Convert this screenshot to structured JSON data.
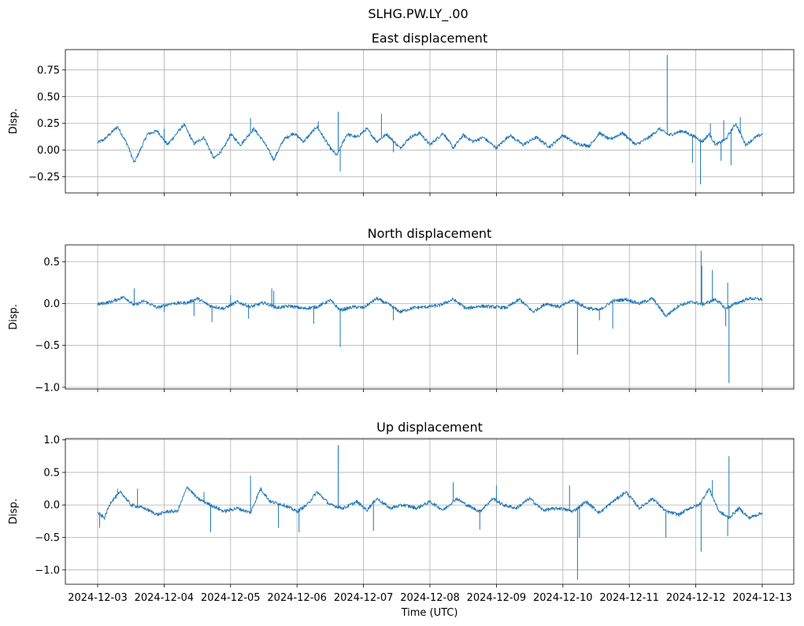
{
  "figure_title": "SLHG.PW.LY_.00",
  "colors": {
    "series": "#1f77b4"
  },
  "chart_data": [
    {
      "type": "line",
      "title": "East displacement",
      "xlabel": "",
      "ylabel": "Disp.",
      "x_tick_labels": [
        "2024-12-03",
        "2024-12-04",
        "2024-12-05",
        "2024-12-06",
        "2024-12-07",
        "2024-12-08",
        "2024-12-09",
        "2024-12-10",
        "2024-12-11",
        "2024-12-12",
        "2024-12-13"
      ],
      "x_range_days": [
        0,
        10
      ],
      "ylim": [
        -0.4,
        0.94
      ],
      "y_ticks": [
        -0.25,
        0.0,
        0.25,
        0.5,
        0.75
      ],
      "y_tick_labels": [
        "−0.25",
        "0.00",
        "0.25",
        "0.50",
        "0.75"
      ],
      "grid": true,
      "series": [
        {
          "name": "East",
          "x": [
            0,
            0.1,
            0.3,
            0.45,
            0.55,
            0.75,
            0.9,
            1.05,
            1.3,
            1.45,
            1.6,
            1.75,
            1.9,
            2.0,
            2.15,
            2.35,
            2.5,
            2.65,
            2.8,
            2.95,
            3.1,
            3.3,
            3.5,
            3.6,
            3.75,
            3.9,
            4.05,
            4.2,
            4.35,
            4.55,
            4.7,
            4.85,
            5.0,
            5.2,
            5.35,
            5.5,
            5.65,
            5.8,
            6.0,
            6.2,
            6.4,
            6.6,
            6.8,
            7.0,
            7.2,
            7.4,
            7.55,
            7.7,
            7.9,
            8.1,
            8.3,
            8.45,
            8.6,
            8.8,
            9.0,
            9.1,
            9.2,
            9.3,
            9.45,
            9.6,
            9.75,
            9.9,
            10.0
          ],
          "values": [
            0.07,
            0.1,
            0.22,
            0.05,
            -0.12,
            0.15,
            0.18,
            0.05,
            0.24,
            0.06,
            0.12,
            -0.08,
            0.02,
            0.15,
            0.05,
            0.2,
            0.08,
            -0.09,
            0.1,
            0.16,
            0.08,
            0.22,
            0.02,
            -0.05,
            0.15,
            0.12,
            0.2,
            0.08,
            0.15,
            0.02,
            0.12,
            0.16,
            0.05,
            0.16,
            0.02,
            0.14,
            0.08,
            0.12,
            0.02,
            0.14,
            0.05,
            0.12,
            0.03,
            0.14,
            0.06,
            0.04,
            0.16,
            0.1,
            0.16,
            0.05,
            0.12,
            0.2,
            0.14,
            0.18,
            0.12,
            0.08,
            0.15,
            0.05,
            0.1,
            0.25,
            0.05,
            0.12,
            0.15
          ],
          "spikes": [
            {
              "x": 1.0,
              "value": 0.2
            },
            {
              "x": 2.3,
              "value": 0.3
            },
            {
              "x": 2.7,
              "value": -0.02
            },
            {
              "x": 3.32,
              "value": 0.27
            },
            {
              "x": 3.62,
              "value": 0.36
            },
            {
              "x": 3.65,
              "value": -0.2
            },
            {
              "x": 4.27,
              "value": 0.34
            },
            {
              "x": 4.45,
              "value": -0.02
            },
            {
              "x": 8.57,
              "value": 0.89
            },
            {
              "x": 8.95,
              "value": -0.12
            },
            {
              "x": 9.07,
              "value": -0.32
            },
            {
              "x": 9.22,
              "value": 0.25
            },
            {
              "x": 9.38,
              "value": -0.1
            },
            {
              "x": 9.53,
              "value": -0.14
            },
            {
              "x": 9.67,
              "value": 0.31
            },
            {
              "x": 9.42,
              "value": 0.28
            }
          ]
        }
      ]
    },
    {
      "type": "line",
      "title": "North displacement",
      "xlabel": "",
      "ylabel": "Disp.",
      "x_tick_labels": [
        "2024-12-03",
        "2024-12-04",
        "2024-12-05",
        "2024-12-06",
        "2024-12-07",
        "2024-12-08",
        "2024-12-09",
        "2024-12-10",
        "2024-12-11",
        "2024-12-12",
        "2024-12-13"
      ],
      "x_range_days": [
        0,
        10
      ],
      "ylim": [
        -1.02,
        0.7
      ],
      "y_ticks": [
        -1.0,
        -0.5,
        0.0,
        0.5
      ],
      "y_tick_labels": [
        "−1.0",
        "−0.5",
        "0.0",
        "0.5"
      ],
      "grid": true,
      "series": [
        {
          "name": "North",
          "x": [
            0,
            0.2,
            0.4,
            0.55,
            0.7,
            0.9,
            1.1,
            1.35,
            1.5,
            1.7,
            1.9,
            2.1,
            2.3,
            2.5,
            2.7,
            2.9,
            3.1,
            3.3,
            3.5,
            3.65,
            3.85,
            4.0,
            4.2,
            4.4,
            4.55,
            4.75,
            4.95,
            5.15,
            5.35,
            5.55,
            5.75,
            5.95,
            6.15,
            6.35,
            6.55,
            6.75,
            6.95,
            7.15,
            7.35,
            7.55,
            7.75,
            7.95,
            8.15,
            8.35,
            8.55,
            8.75,
            8.95,
            9.1,
            9.3,
            9.45,
            9.6,
            9.8,
            10.0
          ],
          "values": [
            -0.01,
            0.02,
            0.08,
            -0.02,
            0.03,
            -0.05,
            0.0,
            0.01,
            0.06,
            -0.03,
            -0.06,
            0.02,
            -0.04,
            0.01,
            -0.05,
            -0.03,
            -0.06,
            -0.04,
            0.04,
            -0.08,
            -0.04,
            -0.05,
            0.06,
            -0.02,
            -0.1,
            -0.05,
            -0.04,
            -0.02,
            0.05,
            -0.06,
            -0.03,
            -0.04,
            -0.05,
            0.05,
            -0.1,
            0.0,
            -0.04,
            0.04,
            -0.05,
            -0.08,
            0.03,
            0.05,
            0.0,
            0.06,
            -0.15,
            -0.02,
            0.02,
            -0.01,
            0.05,
            -0.06,
            0.0,
            0.06,
            0.05
          ],
          "spikes": [
            {
              "x": 0.55,
              "value": 0.18
            },
            {
              "x": 1.0,
              "value": -0.1
            },
            {
              "x": 1.45,
              "value": -0.15
            },
            {
              "x": 1.72,
              "value": -0.22
            },
            {
              "x": 2.0,
              "value": 0.1
            },
            {
              "x": 2.27,
              "value": -0.18
            },
            {
              "x": 2.62,
              "value": 0.18
            },
            {
              "x": 2.65,
              "value": 0.15
            },
            {
              "x": 3.25,
              "value": -0.24
            },
            {
              "x": 3.65,
              "value": -0.52
            },
            {
              "x": 4.45,
              "value": -0.2
            },
            {
              "x": 6.0,
              "value": -0.04
            },
            {
              "x": 7.22,
              "value": -0.61
            },
            {
              "x": 7.55,
              "value": -0.2
            },
            {
              "x": 7.75,
              "value": -0.3
            },
            {
              "x": 9.08,
              "value": 0.63
            },
            {
              "x": 9.09,
              "value": 0.45
            },
            {
              "x": 9.25,
              "value": 0.4
            },
            {
              "x": 9.45,
              "value": -0.27
            },
            {
              "x": 9.5,
              "value": -0.95
            },
            {
              "x": 9.48,
              "value": 0.25
            }
          ]
        }
      ]
    },
    {
      "type": "line",
      "title": "Up displacement",
      "xlabel": "Time (UTC)",
      "ylabel": "Disp.",
      "x_tick_labels": [
        "2024-12-03",
        "2024-12-04",
        "2024-12-05",
        "2024-12-06",
        "2024-12-07",
        "2024-12-08",
        "2024-12-09",
        "2024-12-10",
        "2024-12-11",
        "2024-12-12",
        "2024-12-13"
      ],
      "x_range_days": [
        0,
        10
      ],
      "ylim": [
        -1.22,
        1.02
      ],
      "y_ticks": [
        -1.0,
        -0.5,
        0.0,
        0.5,
        1.0
      ],
      "y_tick_labels": [
        "−1.0",
        "−0.5",
        "0.0",
        "0.5",
        "1.0"
      ],
      "grid": true,
      "series": [
        {
          "name": "Up",
          "x": [
            0,
            0.1,
            0.2,
            0.35,
            0.5,
            0.7,
            0.9,
            1.05,
            1.2,
            1.35,
            1.5,
            1.7,
            1.9,
            2.1,
            2.3,
            2.45,
            2.6,
            2.8,
            3.0,
            3.15,
            3.3,
            3.5,
            3.7,
            3.9,
            4.05,
            4.2,
            4.4,
            4.6,
            4.8,
            5.0,
            5.2,
            5.4,
            5.55,
            5.75,
            5.95,
            6.1,
            6.3,
            6.5,
            6.7,
            6.95,
            7.15,
            7.35,
            7.55,
            7.75,
            7.95,
            8.15,
            8.35,
            8.55,
            8.75,
            8.9,
            9.05,
            9.2,
            9.35,
            9.5,
            9.65,
            9.8,
            10.0
          ],
          "values": [
            -0.12,
            -0.2,
            0.05,
            0.2,
            0.0,
            -0.05,
            -0.15,
            -0.1,
            -0.1,
            0.28,
            0.1,
            0.0,
            -0.1,
            -0.05,
            -0.12,
            0.25,
            0.05,
            0.0,
            -0.1,
            0.0,
            0.2,
            0.0,
            -0.05,
            0.05,
            -0.08,
            0.1,
            -0.05,
            0.0,
            -0.05,
            0.05,
            -0.08,
            0.1,
            0.0,
            -0.1,
            0.1,
            0.0,
            -0.05,
            0.1,
            -0.08,
            -0.05,
            -0.1,
            0.05,
            -0.12,
            0.05,
            0.2,
            -0.05,
            0.1,
            -0.1,
            -0.15,
            -0.05,
            0.0,
            0.25,
            -0.1,
            -0.2,
            -0.05,
            -0.2,
            -0.12
          ],
          "spikes": [
            {
              "x": 0.03,
              "value": -0.35
            },
            {
              "x": 0.3,
              "value": 0.25
            },
            {
              "x": 0.6,
              "value": 0.25
            },
            {
              "x": 1.6,
              "value": 0.2
            },
            {
              "x": 1.7,
              "value": -0.42
            },
            {
              "x": 2.3,
              "value": 0.45
            },
            {
              "x": 2.72,
              "value": -0.35
            },
            {
              "x": 3.03,
              "value": -0.42
            },
            {
              "x": 3.62,
              "value": 0.92
            },
            {
              "x": 4.15,
              "value": -0.4
            },
            {
              "x": 5.35,
              "value": 0.35
            },
            {
              "x": 5.75,
              "value": -0.38
            },
            {
              "x": 6.0,
              "value": 0.3
            },
            {
              "x": 7.1,
              "value": 0.3
            },
            {
              "x": 7.22,
              "value": -1.15
            },
            {
              "x": 7.25,
              "value": -0.5
            },
            {
              "x": 8.55,
              "value": -0.5
            },
            {
              "x": 9.08,
              "value": -0.72
            },
            {
              "x": 9.25,
              "value": 0.38
            },
            {
              "x": 9.5,
              "value": 0.75
            },
            {
              "x": 9.48,
              "value": -0.48
            }
          ]
        }
      ]
    }
  ]
}
